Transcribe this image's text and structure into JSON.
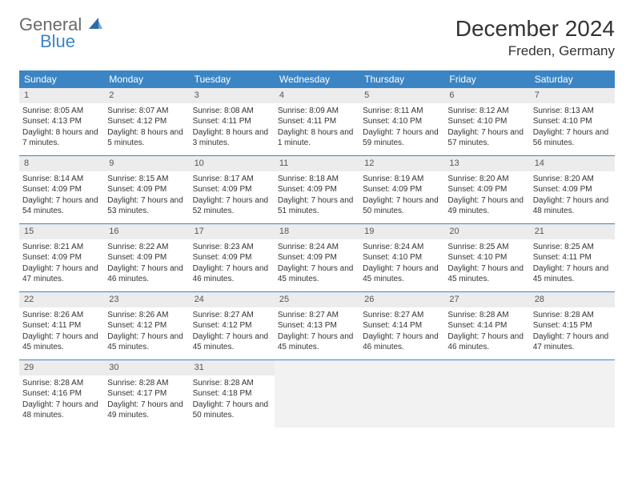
{
  "logo": {
    "line1": "General",
    "line2": "Blue"
  },
  "title": "December 2024",
  "location": "Freden, Germany",
  "colors": {
    "header_bg": "#3b85c4",
    "header_text": "#ffffff",
    "daynum_bg": "#ececec",
    "daynum_text": "#555555",
    "body_text": "#333333",
    "border": "#3b85c4",
    "empty_bg": "#f2f2f2",
    "page_bg": "#ffffff"
  },
  "weekdays": [
    "Sunday",
    "Monday",
    "Tuesday",
    "Wednesday",
    "Thursday",
    "Friday",
    "Saturday"
  ],
  "weeks": [
    [
      {
        "n": "1",
        "sunrise": "Sunrise: 8:05 AM",
        "sunset": "Sunset: 4:13 PM",
        "daylight": "Daylight: 8 hours and 7 minutes."
      },
      {
        "n": "2",
        "sunrise": "Sunrise: 8:07 AM",
        "sunset": "Sunset: 4:12 PM",
        "daylight": "Daylight: 8 hours and 5 minutes."
      },
      {
        "n": "3",
        "sunrise": "Sunrise: 8:08 AM",
        "sunset": "Sunset: 4:11 PM",
        "daylight": "Daylight: 8 hours and 3 minutes."
      },
      {
        "n": "4",
        "sunrise": "Sunrise: 8:09 AM",
        "sunset": "Sunset: 4:11 PM",
        "daylight": "Daylight: 8 hours and 1 minute."
      },
      {
        "n": "5",
        "sunrise": "Sunrise: 8:11 AM",
        "sunset": "Sunset: 4:10 PM",
        "daylight": "Daylight: 7 hours and 59 minutes."
      },
      {
        "n": "6",
        "sunrise": "Sunrise: 8:12 AM",
        "sunset": "Sunset: 4:10 PM",
        "daylight": "Daylight: 7 hours and 57 minutes."
      },
      {
        "n": "7",
        "sunrise": "Sunrise: 8:13 AM",
        "sunset": "Sunset: 4:10 PM",
        "daylight": "Daylight: 7 hours and 56 minutes."
      }
    ],
    [
      {
        "n": "8",
        "sunrise": "Sunrise: 8:14 AM",
        "sunset": "Sunset: 4:09 PM",
        "daylight": "Daylight: 7 hours and 54 minutes."
      },
      {
        "n": "9",
        "sunrise": "Sunrise: 8:15 AM",
        "sunset": "Sunset: 4:09 PM",
        "daylight": "Daylight: 7 hours and 53 minutes."
      },
      {
        "n": "10",
        "sunrise": "Sunrise: 8:17 AM",
        "sunset": "Sunset: 4:09 PM",
        "daylight": "Daylight: 7 hours and 52 minutes."
      },
      {
        "n": "11",
        "sunrise": "Sunrise: 8:18 AM",
        "sunset": "Sunset: 4:09 PM",
        "daylight": "Daylight: 7 hours and 51 minutes."
      },
      {
        "n": "12",
        "sunrise": "Sunrise: 8:19 AM",
        "sunset": "Sunset: 4:09 PM",
        "daylight": "Daylight: 7 hours and 50 minutes."
      },
      {
        "n": "13",
        "sunrise": "Sunrise: 8:20 AM",
        "sunset": "Sunset: 4:09 PM",
        "daylight": "Daylight: 7 hours and 49 minutes."
      },
      {
        "n": "14",
        "sunrise": "Sunrise: 8:20 AM",
        "sunset": "Sunset: 4:09 PM",
        "daylight": "Daylight: 7 hours and 48 minutes."
      }
    ],
    [
      {
        "n": "15",
        "sunrise": "Sunrise: 8:21 AM",
        "sunset": "Sunset: 4:09 PM",
        "daylight": "Daylight: 7 hours and 47 minutes."
      },
      {
        "n": "16",
        "sunrise": "Sunrise: 8:22 AM",
        "sunset": "Sunset: 4:09 PM",
        "daylight": "Daylight: 7 hours and 46 minutes."
      },
      {
        "n": "17",
        "sunrise": "Sunrise: 8:23 AM",
        "sunset": "Sunset: 4:09 PM",
        "daylight": "Daylight: 7 hours and 46 minutes."
      },
      {
        "n": "18",
        "sunrise": "Sunrise: 8:24 AM",
        "sunset": "Sunset: 4:09 PM",
        "daylight": "Daylight: 7 hours and 45 minutes."
      },
      {
        "n": "19",
        "sunrise": "Sunrise: 8:24 AM",
        "sunset": "Sunset: 4:10 PM",
        "daylight": "Daylight: 7 hours and 45 minutes."
      },
      {
        "n": "20",
        "sunrise": "Sunrise: 8:25 AM",
        "sunset": "Sunset: 4:10 PM",
        "daylight": "Daylight: 7 hours and 45 minutes."
      },
      {
        "n": "21",
        "sunrise": "Sunrise: 8:25 AM",
        "sunset": "Sunset: 4:11 PM",
        "daylight": "Daylight: 7 hours and 45 minutes."
      }
    ],
    [
      {
        "n": "22",
        "sunrise": "Sunrise: 8:26 AM",
        "sunset": "Sunset: 4:11 PM",
        "daylight": "Daylight: 7 hours and 45 minutes."
      },
      {
        "n": "23",
        "sunrise": "Sunrise: 8:26 AM",
        "sunset": "Sunset: 4:12 PM",
        "daylight": "Daylight: 7 hours and 45 minutes."
      },
      {
        "n": "24",
        "sunrise": "Sunrise: 8:27 AM",
        "sunset": "Sunset: 4:12 PM",
        "daylight": "Daylight: 7 hours and 45 minutes."
      },
      {
        "n": "25",
        "sunrise": "Sunrise: 8:27 AM",
        "sunset": "Sunset: 4:13 PM",
        "daylight": "Daylight: 7 hours and 45 minutes."
      },
      {
        "n": "26",
        "sunrise": "Sunrise: 8:27 AM",
        "sunset": "Sunset: 4:14 PM",
        "daylight": "Daylight: 7 hours and 46 minutes."
      },
      {
        "n": "27",
        "sunrise": "Sunrise: 8:28 AM",
        "sunset": "Sunset: 4:14 PM",
        "daylight": "Daylight: 7 hours and 46 minutes."
      },
      {
        "n": "28",
        "sunrise": "Sunrise: 8:28 AM",
        "sunset": "Sunset: 4:15 PM",
        "daylight": "Daylight: 7 hours and 47 minutes."
      }
    ],
    [
      {
        "n": "29",
        "sunrise": "Sunrise: 8:28 AM",
        "sunset": "Sunset: 4:16 PM",
        "daylight": "Daylight: 7 hours and 48 minutes."
      },
      {
        "n": "30",
        "sunrise": "Sunrise: 8:28 AM",
        "sunset": "Sunset: 4:17 PM",
        "daylight": "Daylight: 7 hours and 49 minutes."
      },
      {
        "n": "31",
        "sunrise": "Sunrise: 8:28 AM",
        "sunset": "Sunset: 4:18 PM",
        "daylight": "Daylight: 7 hours and 50 minutes."
      },
      null,
      null,
      null,
      null
    ]
  ]
}
